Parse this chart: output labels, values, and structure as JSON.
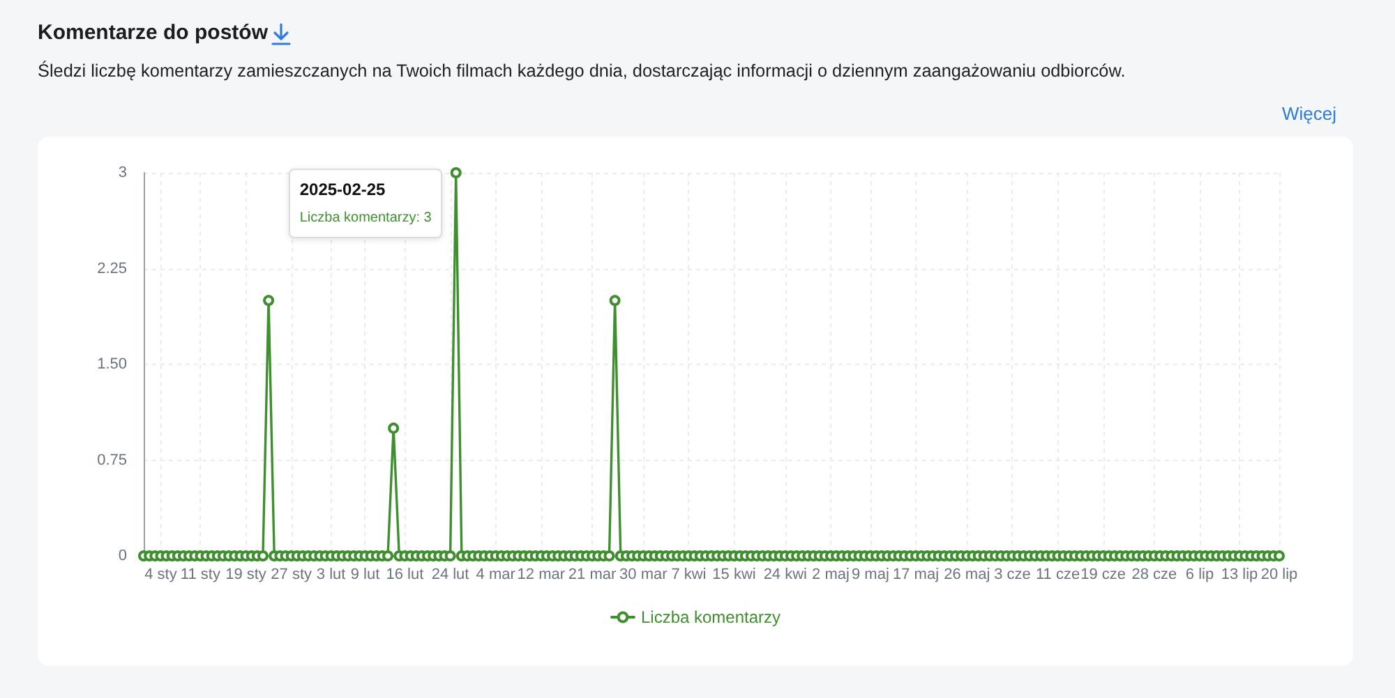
{
  "chart_data": {
    "type": "line",
    "title": "Komentarze do postów",
    "subtitle": "Śledzi liczbę komentarzy zamieszczanych na Twoich filmach każdego dnia, dostarczając informacji o dziennym zaangażowaniu odbiorców.",
    "annotations": [
      "Więcej",
      {
        "text": "2025-02-25\nLiczba komentarzy: 3",
        "x": "2025-02-25",
        "y": 3
      }
    ],
    "x": [
      "2025-01-01",
      "2025-01-02",
      "2025-01-03",
      "2025-01-04",
      "2025-01-05",
      "2025-01-06",
      "2025-01-07",
      "2025-01-08",
      "2025-01-09",
      "2025-01-10",
      "2025-01-11",
      "2025-01-12",
      "2025-01-13",
      "2025-01-14",
      "2025-01-15",
      "2025-01-16",
      "2025-01-17",
      "2025-01-18",
      "2025-01-19",
      "2025-01-20",
      "2025-01-21",
      "2025-01-22",
      "2025-01-23",
      "2025-01-24",
      "2025-01-25",
      "2025-01-26",
      "2025-01-27",
      "2025-01-28",
      "2025-01-29",
      "2025-01-30",
      "2025-01-31",
      "2025-02-01",
      "2025-02-02",
      "2025-02-03",
      "2025-02-04",
      "2025-02-05",
      "2025-02-06",
      "2025-02-07",
      "2025-02-08",
      "2025-02-09",
      "2025-02-10",
      "2025-02-11",
      "2025-02-12",
      "2025-02-13",
      "2025-02-14",
      "2025-02-15",
      "2025-02-16",
      "2025-02-17",
      "2025-02-18",
      "2025-02-19",
      "2025-02-20",
      "2025-02-21",
      "2025-02-22",
      "2025-02-23",
      "2025-02-24",
      "2025-02-25",
      "2025-02-26",
      "2025-02-27",
      "2025-02-28",
      "2025-03-01",
      "2025-03-02",
      "2025-03-03",
      "2025-03-04",
      "2025-03-05",
      "2025-03-06",
      "2025-03-07",
      "2025-03-08",
      "2025-03-09",
      "2025-03-10",
      "2025-03-11",
      "2025-03-12",
      "2025-03-13",
      "2025-03-14",
      "2025-03-15",
      "2025-03-16",
      "2025-03-17",
      "2025-03-18",
      "2025-03-19",
      "2025-03-20",
      "2025-03-21",
      "2025-03-22",
      "2025-03-23",
      "2025-03-24",
      "2025-03-25",
      "2025-03-26",
      "2025-03-27",
      "2025-03-28",
      "2025-03-29",
      "2025-03-30",
      "2025-03-31",
      "2025-04-01",
      "2025-04-02",
      "2025-04-03",
      "2025-04-04",
      "2025-04-05",
      "2025-04-06",
      "2025-04-07",
      "2025-04-08",
      "2025-04-09",
      "2025-04-10",
      "2025-04-11",
      "2025-04-12",
      "2025-04-13",
      "2025-04-14",
      "2025-04-15",
      "2025-04-16",
      "2025-04-17",
      "2025-04-18",
      "2025-04-19",
      "2025-04-20",
      "2025-04-21",
      "2025-04-22",
      "2025-04-23",
      "2025-04-24",
      "2025-04-25",
      "2025-04-26",
      "2025-04-27",
      "2025-04-28",
      "2025-04-29",
      "2025-04-30",
      "2025-05-01",
      "2025-05-02",
      "2025-05-03",
      "2025-05-04",
      "2025-05-05",
      "2025-05-06",
      "2025-05-07",
      "2025-05-08",
      "2025-05-09",
      "2025-05-10",
      "2025-05-11",
      "2025-05-12",
      "2025-05-13",
      "2025-05-14",
      "2025-05-15",
      "2025-05-16",
      "2025-05-17",
      "2025-05-18",
      "2025-05-19",
      "2025-05-20",
      "2025-05-21",
      "2025-05-22",
      "2025-05-23",
      "2025-05-24",
      "2025-05-25",
      "2025-05-26",
      "2025-05-27",
      "2025-05-28",
      "2025-05-29",
      "2025-05-30",
      "2025-05-31",
      "2025-06-01",
      "2025-06-02",
      "2025-06-03",
      "2025-06-04",
      "2025-06-05",
      "2025-06-06",
      "2025-06-07",
      "2025-06-08",
      "2025-06-09",
      "2025-06-10",
      "2025-06-11",
      "2025-06-12",
      "2025-06-13",
      "2025-06-14",
      "2025-06-15",
      "2025-06-16",
      "2025-06-17",
      "2025-06-18",
      "2025-06-19",
      "2025-06-20",
      "2025-06-21",
      "2025-06-22",
      "2025-06-23",
      "2025-06-24",
      "2025-06-25",
      "2025-06-26",
      "2025-06-27",
      "2025-06-28",
      "2025-06-29",
      "2025-06-30",
      "2025-07-01",
      "2025-07-02",
      "2025-07-03",
      "2025-07-04",
      "2025-07-05",
      "2025-07-06",
      "2025-07-07",
      "2025-07-08",
      "2025-07-09",
      "2025-07-10",
      "2025-07-11",
      "2025-07-12",
      "2025-07-13",
      "2025-07-14",
      "2025-07-15",
      "2025-07-16",
      "2025-07-17",
      "2025-07-18",
      "2025-07-19",
      "2025-07-20"
    ],
    "series": [
      {
        "name": "Liczba komentarzy",
        "color": "#3f8f2f",
        "values": [
          0,
          0,
          0,
          0,
          0,
          0,
          0,
          0,
          0,
          0,
          0,
          0,
          0,
          0,
          0,
          0,
          0,
          0,
          0,
          0,
          0,
          0,
          2,
          0,
          0,
          0,
          0,
          0,
          0,
          0,
          0,
          0,
          0,
          0,
          0,
          0,
          0,
          0,
          0,
          0,
          0,
          0,
          0,
          0,
          1,
          0,
          0,
          0,
          0,
          0,
          0,
          0,
          0,
          0,
          0,
          3,
          0,
          0,
          0,
          0,
          0,
          0,
          0,
          0,
          0,
          0,
          0,
          0,
          0,
          0,
          0,
          0,
          0,
          0,
          0,
          0,
          0,
          0,
          0,
          0,
          0,
          0,
          0,
          2,
          0,
          0,
          0,
          0,
          0,
          0,
          0,
          0,
          0,
          0,
          0,
          0,
          0,
          0,
          0,
          0,
          0,
          0,
          0,
          0,
          0,
          0,
          0,
          0,
          0,
          0,
          0,
          0,
          0,
          0,
          0,
          0,
          0,
          0,
          0,
          0,
          0,
          0,
          0,
          0,
          0,
          0,
          0,
          0,
          0,
          0,
          0,
          0,
          0,
          0,
          0,
          0,
          0,
          0,
          0,
          0,
          0,
          0,
          0,
          0,
          0,
          0,
          0,
          0,
          0,
          0,
          0,
          0,
          0,
          0,
          0,
          0,
          0,
          0,
          0,
          0,
          0,
          0,
          0,
          0,
          0,
          0,
          0,
          0,
          0,
          0,
          0,
          0,
          0,
          0,
          0,
          0,
          0,
          0,
          0,
          0,
          0,
          0,
          0,
          0,
          0,
          0,
          0,
          0,
          0,
          0,
          0,
          0,
          0,
          0,
          0,
          0,
          0,
          0,
          0,
          0,
          0
        ]
      }
    ],
    "xlim": [
      "2025-01-01",
      "2025-07-20"
    ],
    "xticks": [
      {
        "value": "2025-01-04",
        "label": "4 sty"
      },
      {
        "value": "2025-01-11",
        "label": "11 sty"
      },
      {
        "value": "2025-01-19",
        "label": "19 sty"
      },
      {
        "value": "2025-01-27",
        "label": "27 sty"
      },
      {
        "value": "2025-02-03",
        "label": "3 lut"
      },
      {
        "value": "2025-02-09",
        "label": "9 lut"
      },
      {
        "value": "2025-02-16",
        "label": "16 lut"
      },
      {
        "value": "2025-02-24",
        "label": "24 lut"
      },
      {
        "value": "2025-03-04",
        "label": "4 mar"
      },
      {
        "value": "2025-03-12",
        "label": "12 mar"
      },
      {
        "value": "2025-03-21",
        "label": "21 mar"
      },
      {
        "value": "2025-03-30",
        "label": "30 mar"
      },
      {
        "value": "2025-04-07",
        "label": "7 kwi"
      },
      {
        "value": "2025-04-15",
        "label": "15 kwi"
      },
      {
        "value": "2025-04-24",
        "label": "24 kwi"
      },
      {
        "value": "2025-05-02",
        "label": "2 maj"
      },
      {
        "value": "2025-05-09",
        "label": "9 maj"
      },
      {
        "value": "2025-05-17",
        "label": "17 maj"
      },
      {
        "value": "2025-05-26",
        "label": "26 maj"
      },
      {
        "value": "2025-06-03",
        "label": "3 cze"
      },
      {
        "value": "2025-06-11",
        "label": "11 cze"
      },
      {
        "value": "2025-06-19",
        "label": "19 cze"
      },
      {
        "value": "2025-06-28",
        "label": "28 cze"
      },
      {
        "value": "2025-07-06",
        "label": "6 lip"
      },
      {
        "value": "2025-07-13",
        "label": "13 lip"
      },
      {
        "value": "2025-07-20",
        "label": "20 lip"
      }
    ],
    "ylim": [
      0,
      3
    ],
    "yticks": [
      0,
      0.75,
      {
        "value": 1.5,
        "label": "1.50"
      },
      2.25,
      3
    ],
    "grid": true,
    "legend": "bottom",
    "marker": "circle"
  }
}
